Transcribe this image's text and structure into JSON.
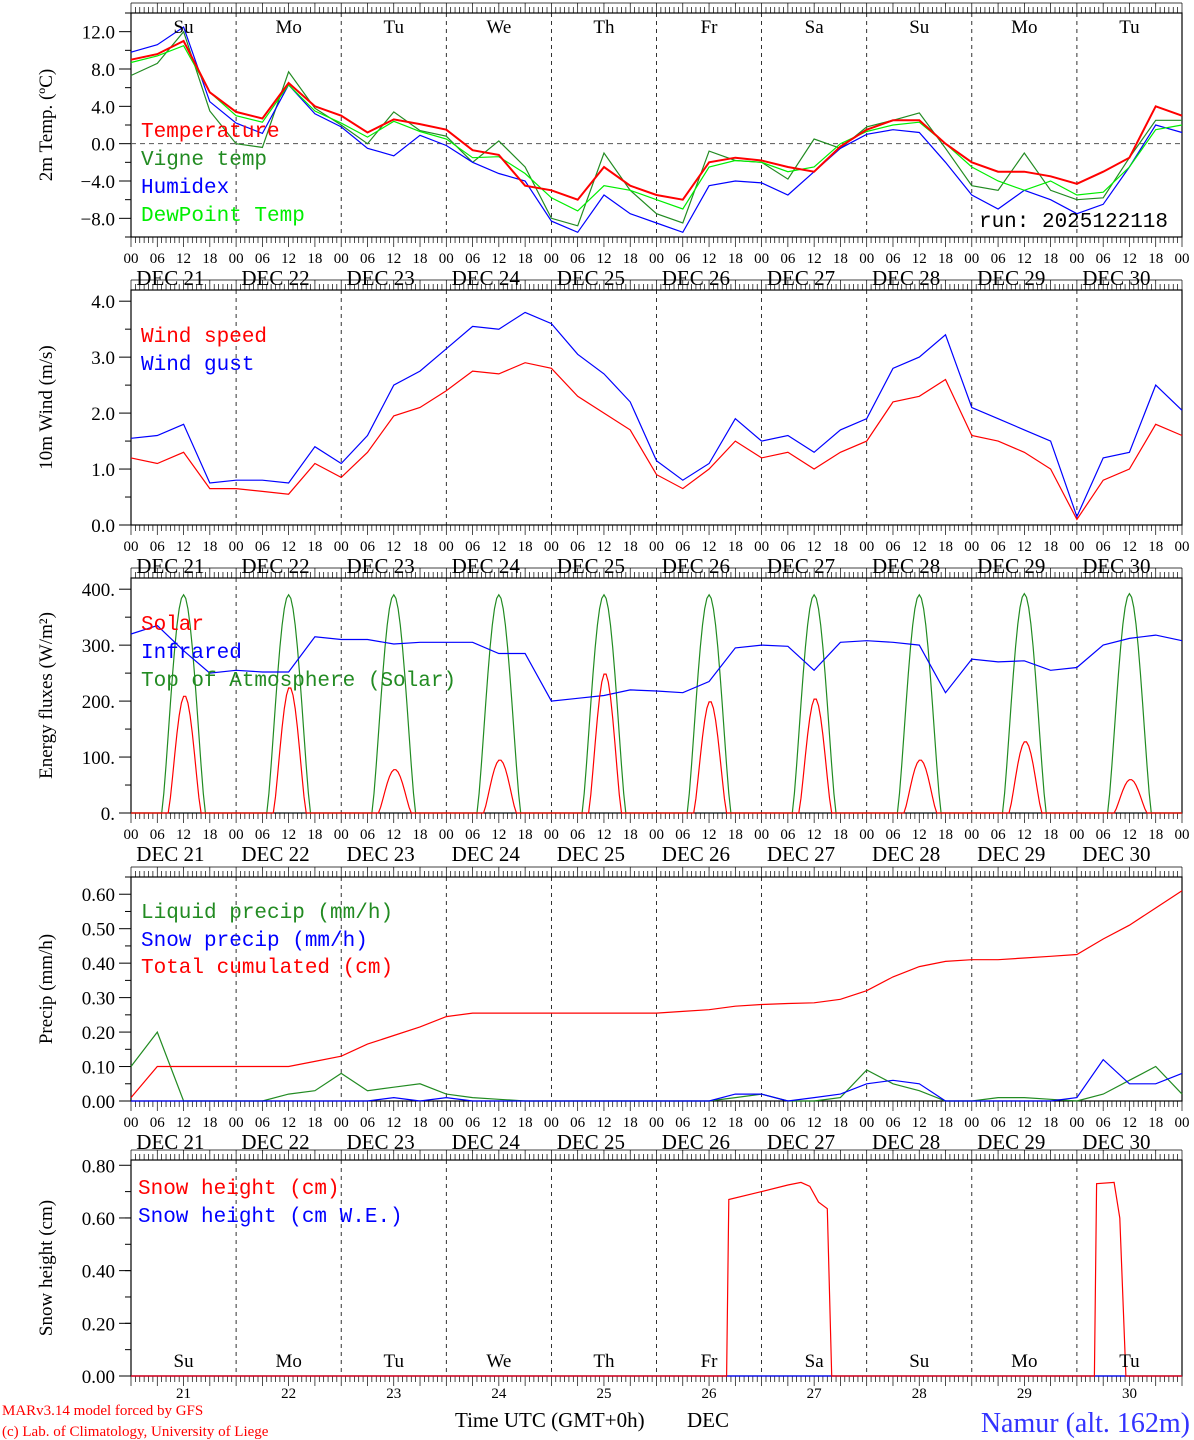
{
  "chart_data": [
    {
      "type": "line",
      "ylabel": "2m Temp. (ºC)",
      "ylim": [
        -10,
        14
      ],
      "yticks": [
        {
          "v": 12,
          "label": "12.0"
        },
        {
          "v": 8,
          "label": "8.0"
        },
        {
          "v": 4,
          "label": "4.0"
        },
        {
          "v": 0,
          "label": "0.0"
        },
        {
          "v": -4,
          "label": "−4.0"
        },
        {
          "v": -8,
          "label": "−8.0"
        }
      ],
      "x_step_hours": 6,
      "series": [
        {
          "name": "Vigne temp",
          "color": "#228b22",
          "values": [
            7.3,
            8.6,
            12.0,
            3.5,
            0.0,
            -0.4,
            7.7,
            3.8,
            2.0,
            0.0,
            3.4,
            1.4,
            0.8,
            -2.0,
            0.3,
            -2.5,
            -8.0,
            -8.8,
            -1.0,
            -5.0,
            -7.5,
            -8.5,
            -0.8,
            -1.8,
            -2.0,
            -3.8,
            0.5,
            -0.5,
            1.8,
            2.5,
            3.3,
            -0.5,
            -4.5,
            -5.0,
            -1.0,
            -5.0,
            -6.0,
            -5.8,
            -1.5,
            2.5,
            2.5
          ]
        },
        {
          "name": "Humidex",
          "color": "#0000ff",
          "values": [
            9.8,
            10.6,
            12.5,
            4.5,
            2.2,
            1.1,
            6.3,
            3.2,
            1.8,
            -0.5,
            -1.3,
            0.9,
            -0.2,
            -2.0,
            -3.2,
            -4.0,
            -8.3,
            -9.5,
            -5.5,
            -7.5,
            -8.5,
            -9.5,
            -4.5,
            -4.0,
            -4.2,
            -5.5,
            -3.0,
            -0.5,
            1.0,
            1.5,
            1.2,
            -2.0,
            -5.5,
            -7.0,
            -5.0,
            -6.0,
            -7.5,
            -6.5,
            -2.5,
            2.0,
            1.2
          ]
        },
        {
          "name": "DewPoint Temp",
          "color": "#00ee00",
          "values": [
            8.7,
            9.4,
            10.5,
            5.5,
            3.0,
            2.3,
            6.3,
            3.5,
            2.2,
            0.7,
            2.4,
            1.3,
            0.5,
            -1.5,
            -1.4,
            -3.2,
            -5.8,
            -7.2,
            -4.5,
            -5.0,
            -6.0,
            -7.0,
            -2.5,
            -1.8,
            -2.0,
            -3.0,
            -2.5,
            0.0,
            1.3,
            2.0,
            2.3,
            0.0,
            -2.5,
            -4.0,
            -5.0,
            -4.0,
            -5.5,
            -5.2,
            -2.5,
            1.5,
            2.0
          ]
        },
        {
          "name": "Temperature",
          "color": "#ff0000",
          "values": [
            9.0,
            9.6,
            11.0,
            5.5,
            3.4,
            2.7,
            6.5,
            4.0,
            3.0,
            1.2,
            2.6,
            2.1,
            1.5,
            -0.7,
            -1.2,
            -4.5,
            -5.0,
            -6.0,
            -2.5,
            -4.5,
            -5.5,
            -6.0,
            -2.0,
            -1.5,
            -1.8,
            -2.5,
            -3.0,
            -0.3,
            1.5,
            2.5,
            2.5,
            0.0,
            -2.0,
            -3.0,
            -3.0,
            -3.5,
            -4.3,
            -3.0,
            -1.5,
            4.0,
            3.0
          ]
        }
      ],
      "legend": [
        "Temperature",
        "Vigne temp",
        "Humidex",
        "DewPoint Temp"
      ],
      "legend_colors": [
        "#ff0000",
        "#228b22",
        "#0000ff",
        "#00ee00"
      ],
      "annotation": "run: 2025122118",
      "zero_line": true
    },
    {
      "type": "line",
      "ylabel": "10m Wind (m/s)",
      "ylim": [
        0,
        4.2
      ],
      "yticks": [
        {
          "v": 4,
          "label": "4.0"
        },
        {
          "v": 3,
          "label": "3.0"
        },
        {
          "v": 2,
          "label": "2.0"
        },
        {
          "v": 1,
          "label": "1.0"
        },
        {
          "v": 0,
          "label": "0.0"
        }
      ],
      "x_step_hours": 6,
      "series": [
        {
          "name": "Wind gust",
          "color": "#0000ff",
          "values": [
            1.55,
            1.6,
            1.8,
            0.75,
            0.8,
            0.8,
            0.75,
            1.4,
            1.1,
            1.6,
            2.5,
            2.75,
            3.15,
            3.55,
            3.5,
            3.8,
            3.6,
            3.05,
            2.7,
            2.2,
            1.15,
            0.8,
            1.1,
            1.9,
            1.5,
            1.6,
            1.3,
            1.7,
            1.9,
            2.8,
            3.0,
            3.4,
            2.1,
            1.9,
            1.7,
            1.5,
            0.15,
            1.2,
            1.3,
            2.5,
            2.05
          ]
        },
        {
          "name": "Wind speed",
          "color": "#ff0000",
          "values": [
            1.2,
            1.1,
            1.3,
            0.65,
            0.65,
            0.6,
            0.55,
            1.1,
            0.85,
            1.3,
            1.95,
            2.1,
            2.4,
            2.75,
            2.7,
            2.9,
            2.8,
            2.3,
            2.0,
            1.7,
            0.9,
            0.65,
            1.0,
            1.5,
            1.2,
            1.3,
            1.0,
            1.3,
            1.5,
            2.2,
            2.3,
            2.6,
            1.6,
            1.5,
            1.3,
            1.0,
            0.1,
            0.8,
            1.0,
            1.8,
            1.6
          ]
        }
      ],
      "legend": [
        "Wind speed",
        "Wind gust"
      ],
      "legend_colors": [
        "#ff0000",
        "#0000ff"
      ]
    },
    {
      "type": "line",
      "ylabel": "Energy fluxes (W/m²)",
      "ylim": [
        0,
        420
      ],
      "yticks": [
        {
          "v": 400,
          "label": "400."
        },
        {
          "v": 300,
          "label": "300."
        },
        {
          "v": 200,
          "label": "200."
        },
        {
          "v": 100,
          "label": "100."
        },
        {
          "v": 0,
          "label": "0."
        }
      ],
      "x_step_hours": 6,
      "series": [
        {
          "name": "Top of Atmosphere (Solar)",
          "color": "#228b22",
          "daily_peaks": [
            390,
            390,
            390,
            390,
            390,
            390,
            390,
            390,
            392,
            392
          ],
          "daylight_hours": [
            7,
            17
          ]
        },
        {
          "name": "Infrared",
          "color": "#0000ff",
          "values": [
            320,
            335,
            290,
            250,
            255,
            252,
            252,
            315,
            310,
            310,
            302,
            305,
            305,
            305,
            285,
            285,
            200,
            205,
            210,
            220,
            218,
            215,
            235,
            295,
            300,
            298,
            255,
            305,
            308,
            305,
            300,
            215,
            275,
            270,
            272,
            255,
            260,
            300,
            312,
            318,
            308
          ]
        },
        {
          "name": "Solar",
          "color": "#ff0000",
          "daily_peaks": [
            210,
            225,
            78,
            95,
            250,
            200,
            205,
            95,
            128,
            60
          ],
          "daylight_hours": [
            8.5,
            16
          ]
        }
      ],
      "legend": [
        "Solar",
        "Infrared",
        "Top of Atmosphere (Solar)"
      ],
      "legend_colors": [
        "#ff0000",
        "#0000ff",
        "#228b22"
      ]
    },
    {
      "type": "line",
      "ylabel": "Precip (mm/h)",
      "ylim": [
        0,
        0.65
      ],
      "yticks": [
        {
          "v": 0.6,
          "label": "0.60"
        },
        {
          "v": 0.5,
          "label": "0.50"
        },
        {
          "v": 0.4,
          "label": "0.40"
        },
        {
          "v": 0.3,
          "label": "0.30"
        },
        {
          "v": 0.2,
          "label": "0.20"
        },
        {
          "v": 0.1,
          "label": "0.10"
        },
        {
          "v": 0,
          "label": "0.00"
        }
      ],
      "x_step_hours": 6,
      "series": [
        {
          "name": "Liquid precip (mm/h)",
          "color": "#228b22",
          "values": [
            0.1,
            0.2,
            0,
            0,
            0,
            0,
            0.02,
            0.03,
            0.08,
            0.03,
            0.04,
            0.05,
            0.02,
            0.01,
            0.005,
            0,
            0,
            0,
            0,
            0,
            0,
            0,
            0,
            0.01,
            0.02,
            0,
            0,
            0.01,
            0.09,
            0.05,
            0.03,
            0,
            0,
            0.01,
            0.01,
            0.005,
            0,
            0.02,
            0.06,
            0.1,
            0.02
          ]
        },
        {
          "name": "Snow precip (mm/h)",
          "color": "#0000ff",
          "values": [
            0,
            0,
            0,
            0,
            0,
            0,
            0,
            0,
            0,
            0,
            0.01,
            0,
            0.01,
            0,
            0,
            0,
            0,
            0,
            0,
            0,
            0,
            0,
            0,
            0.02,
            0.02,
            0,
            0.01,
            0.02,
            0.05,
            0.06,
            0.05,
            0,
            0,
            0,
            0,
            0,
            0.01,
            0.12,
            0.05,
            0.05,
            0.08
          ]
        },
        {
          "name": "Total cumulated (cm)",
          "color": "#ff0000",
          "values": [
            0.01,
            0.1,
            0.1,
            0.1,
            0.1,
            0.1,
            0.1,
            0.115,
            0.13,
            0.165,
            0.19,
            0.215,
            0.245,
            0.255,
            0.255,
            0.255,
            0.255,
            0.255,
            0.255,
            0.255,
            0.255,
            0.26,
            0.265,
            0.275,
            0.28,
            0.283,
            0.285,
            0.295,
            0.32,
            0.36,
            0.39,
            0.405,
            0.41,
            0.41,
            0.415,
            0.42,
            0.425,
            0.47,
            0.51,
            0.56,
            0.61
          ]
        }
      ],
      "legend": [
        "Liquid precip (mm/h)",
        "Snow precip (mm/h)",
        "Total cumulated (cm)"
      ],
      "legend_colors": [
        "#228b22",
        "#0000ff",
        "#ff0000"
      ]
    },
    {
      "type": "line",
      "ylabel": "Snow height (cm)",
      "ylim": [
        0,
        0.82
      ],
      "yticks": [
        {
          "v": 0.8,
          "label": "0.80"
        },
        {
          "v": 0.6,
          "label": "0.60"
        },
        {
          "v": 0.4,
          "label": "0.40"
        },
        {
          "v": 0.2,
          "label": "0.20"
        },
        {
          "v": 0,
          "label": "0.00"
        }
      ],
      "series": [
        {
          "name": "Snow height (cm W.E.)",
          "color": "#0000ff",
          "points_hours": [
            [
              0,
              0
            ],
            [
              240,
              0
            ]
          ]
        },
        {
          "name": "Snow height (cm)",
          "color": "#ff0000",
          "points_hours": [
            [
              0,
              0
            ],
            [
              136,
              0
            ],
            [
              136.5,
              0.67
            ],
            [
              144,
              0.7
            ],
            [
              150,
              0.725
            ],
            [
              153,
              0.735
            ],
            [
              155,
              0.72
            ],
            [
              157,
              0.66
            ],
            [
              159,
              0.635
            ],
            [
              160,
              0
            ],
            [
              220,
              0
            ],
            [
              220.5,
              0.73
            ],
            [
              224.5,
              0.735
            ],
            [
              225.8,
              0.6
            ],
            [
              227.2,
              0
            ],
            [
              240,
              0
            ]
          ]
        }
      ],
      "legend": [
        "Snow height (cm)",
        "Snow height (cm W.E.)"
      ],
      "legend_colors": [
        "#ff0000",
        "#0000ff"
      ]
    }
  ],
  "weekdays": [
    "Su",
    "Mo",
    "Tu",
    "We",
    "Th",
    "Fr",
    "Sa",
    "Su",
    "Mo",
    "Tu"
  ],
  "weekday_colors": [
    "#ff0000",
    "#000000",
    "#000000",
    "#000000",
    "#000000",
    "#000000",
    "#ff0000",
    "#ff0000",
    "#000000",
    "#000000"
  ],
  "day_labels": [
    "DEC 21",
    "DEC 22",
    "DEC 23",
    "DEC 24",
    "DEC 25",
    "DEC 26",
    "DEC 27",
    "DEC 28",
    "DEC 29",
    "DEC 30"
  ],
  "day_numbers": [
    "21",
    "22",
    "23",
    "24",
    "25",
    "26",
    "27",
    "28",
    "29",
    "30"
  ],
  "hour_labels": [
    "00",
    "06",
    "12",
    "18"
  ],
  "footer": {
    "model": "MARv3.14 model forced by GFS",
    "credit": "(c) Lab. of Climatology, University of Liege",
    "xlabel": "Time UTC (GMT+0h)",
    "month": "DEC",
    "location": "Namur (alt. 162m)"
  }
}
